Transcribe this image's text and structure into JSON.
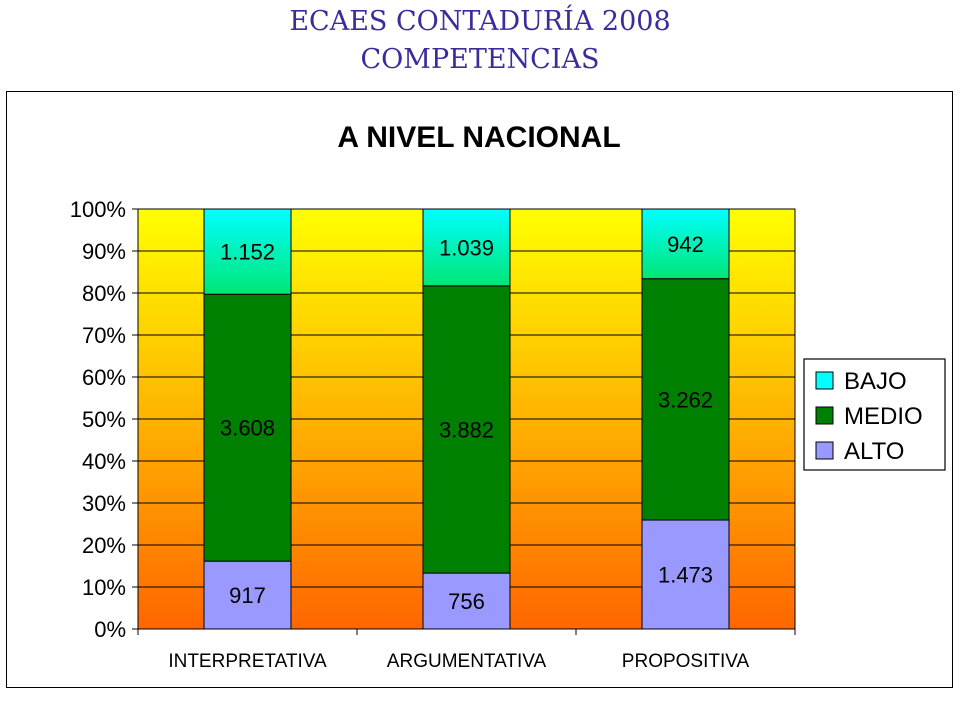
{
  "header": {
    "title_line1": "ECAES CONTADURÍA 2008",
    "title_line2": "COMPETENCIAS"
  },
  "chart_data": {
    "type": "bar",
    "stacked": "percent",
    "title": "A NIVEL NACIONAL",
    "categories": [
      "INTERPRETATIVA",
      "ARGUMENTATIVA",
      "PROPOSITIVA"
    ],
    "series": [
      {
        "name": "ALTO",
        "values": [
          917,
          756,
          1473
        ],
        "labels": [
          "917",
          "756",
          "1.473"
        ],
        "color": "#9999ff"
      },
      {
        "name": "MEDIO",
        "values": [
          3608,
          3882,
          3262
        ],
        "labels": [
          "3.608",
          "3.882",
          "3.262"
        ],
        "color": "#008000"
      },
      {
        "name": "BAJO",
        "values": [
          1152,
          1039,
          942
        ],
        "labels": [
          "1.152",
          "1.039",
          "942"
        ],
        "color": "#00ffff"
      }
    ],
    "yticks": [
      "0%",
      "10%",
      "20%",
      "30%",
      "40%",
      "50%",
      "60%",
      "70%",
      "80%",
      "90%",
      "100%"
    ],
    "ylim": [
      0,
      100
    ],
    "legend": {
      "position": "right",
      "order": [
        "BAJO",
        "MEDIO",
        "ALTO"
      ]
    },
    "plot_background": {
      "top": "#ffff00",
      "bottom": "#ff6600"
    },
    "grid": true
  }
}
